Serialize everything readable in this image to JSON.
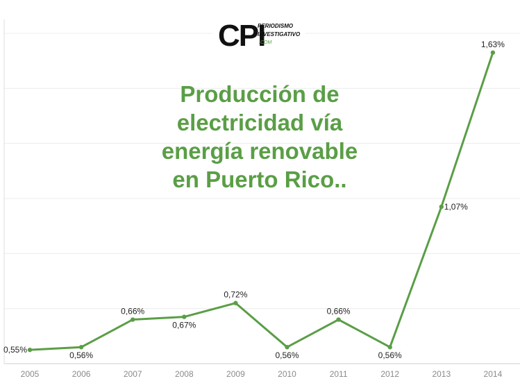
{
  "logo": {
    "mark": "CPI",
    "line1": "PERIODISMO",
    "line2": "INVESTIGATIVO",
    "line3": ".COM"
  },
  "chart_data": {
    "type": "line",
    "title_lines": [
      "Producción de",
      "electricidad vía",
      "energía renovable",
      "en Puerto Rico.."
    ],
    "title_color": "#5a9e46",
    "line_color": "#5a9e46",
    "categories": [
      "2005",
      "2006",
      "2007",
      "2008",
      "2009",
      "2010",
      "2011",
      "2012",
      "2013",
      "2014"
    ],
    "values": [
      0.55,
      0.56,
      0.66,
      0.67,
      0.72,
      0.56,
      0.66,
      0.56,
      1.07,
      1.63
    ],
    "data_labels": [
      "0,55%",
      "0,56%",
      "0,66%",
      "0,67%",
      "0,72%",
      "0,56%",
      "0,66%",
      "0,56%",
      "1,07%",
      "1,63%"
    ],
    "label_positions": [
      "left",
      "below",
      "above",
      "below",
      "above",
      "below",
      "above",
      "below",
      "right",
      "above"
    ],
    "ylim": [
      0.5,
      1.7
    ],
    "grid": true,
    "y_axis_labels": false
  }
}
